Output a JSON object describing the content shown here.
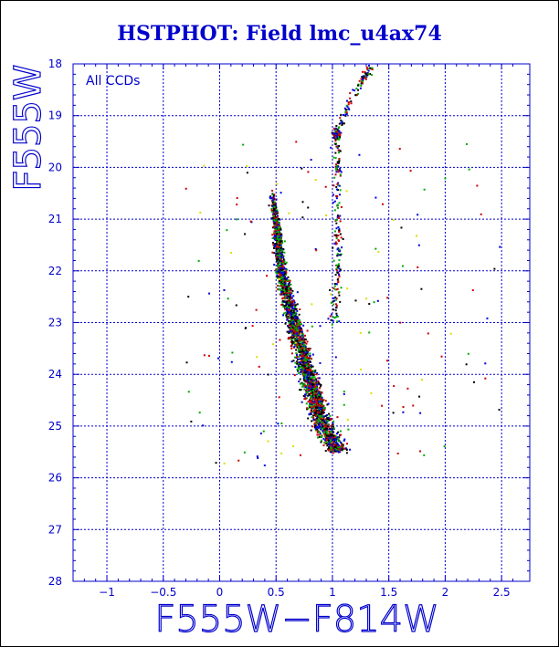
{
  "chart_data": {
    "type": "scatter",
    "title": "HSTPHOT: Field lmc_u4ax74",
    "xlabel": "F555W−F814W",
    "ylabel": "F555W",
    "annotation": "All CCDs",
    "xlim": [
      -1.3,
      2.75
    ],
    "ylim": [
      28,
      18
    ],
    "y_inverted": true,
    "grid": true,
    "xticks": [
      -1,
      -0.5,
      0,
      0.5,
      1,
      1.5,
      2,
      2.5
    ],
    "xtick_labels": [
      "−1",
      "−0.5",
      "0",
      "0.5",
      "1",
      "1.5",
      "2",
      "2.5"
    ],
    "yticks": [
      18,
      19,
      20,
      21,
      22,
      23,
      24,
      25,
      26,
      27,
      28
    ],
    "ytick_labels": [
      "18",
      "19",
      "20",
      "21",
      "22",
      "23",
      "24",
      "25",
      "26",
      "27",
      "28"
    ],
    "point_colors": [
      "#000000",
      "#cc0000",
      "#00aa00",
      "#0000dd",
      "#dddd00"
    ],
    "features": {
      "main_sequence": [
        [
          0.47,
          20.5
        ],
        [
          0.5,
          21.0
        ],
        [
          0.52,
          21.5
        ],
        [
          0.55,
          22.0
        ],
        [
          0.6,
          22.5
        ],
        [
          0.66,
          23.0
        ],
        [
          0.72,
          23.5
        ],
        [
          0.78,
          24.0
        ],
        [
          0.85,
          24.5
        ],
        [
          0.92,
          25.0
        ],
        [
          1.05,
          25.5
        ]
      ],
      "giant_branch": [
        [
          1.02,
          23.0
        ],
        [
          1.05,
          22.0
        ],
        [
          1.05,
          21.0
        ],
        [
          1.05,
          20.0
        ],
        [
          1.04,
          19.3
        ],
        [
          1.2,
          18.5
        ],
        [
          1.35,
          18.1
        ]
      ]
    }
  },
  "colors": {
    "axis": "#0000cc",
    "grid": "#0000cc",
    "background": "#ffffff"
  }
}
